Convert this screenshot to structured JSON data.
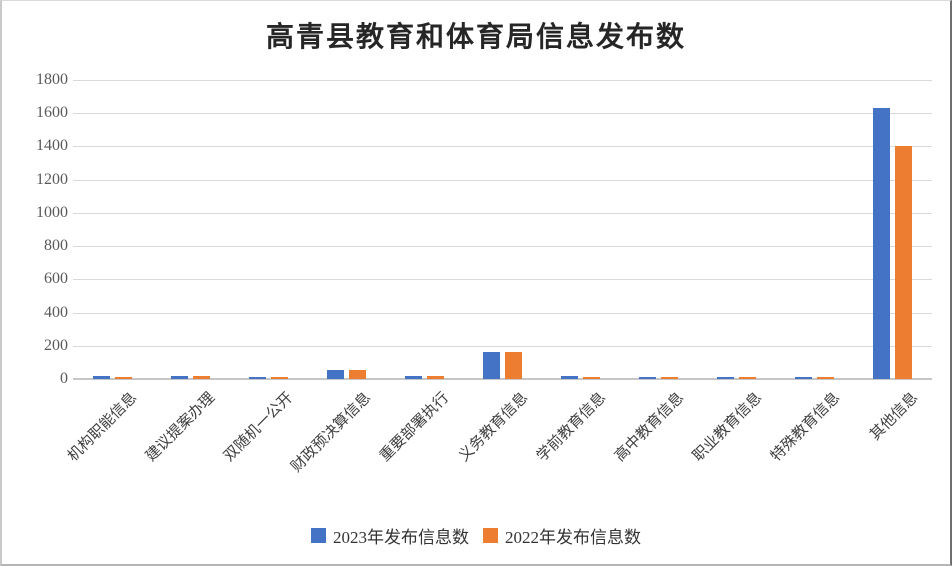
{
  "page": {
    "title": "高青县教育和体育局信息发布数"
  },
  "chart_data": {
    "type": "bar",
    "title": "高青县教育和体育局信息发布数",
    "categories": [
      "机构职能信息",
      "建议提案办理",
      "双随机一公开",
      "财政预决算信息",
      "重要部署执行",
      "义务教育信息",
      "学前教育信息",
      "高中教育信息",
      "职业教育信息",
      "特殊教育信息",
      "其他信息"
    ],
    "series": [
      {
        "name": "2023年发布信息数",
        "color": "#4472C4",
        "values": [
          20,
          20,
          12,
          55,
          20,
          160,
          20,
          14,
          14,
          12,
          1630
        ]
      },
      {
        "name": "2022年发布信息数",
        "color": "#ED7D31",
        "values": [
          12,
          20,
          10,
          55,
          18,
          160,
          12,
          14,
          14,
          12,
          1400
        ]
      }
    ],
    "xlabel": "",
    "ylabel": "",
    "ylim": [
      0,
      1800
    ],
    "ytick_step": 200,
    "yticks": [
      0,
      200,
      400,
      600,
      800,
      1000,
      1200,
      1400,
      1600,
      1800
    ],
    "grid": true,
    "legend_position": "bottom",
    "background": "#ffffff",
    "gridline_color": "#d9d9d9",
    "tick_label_color": "#595959",
    "category_label_color": "#404040"
  }
}
